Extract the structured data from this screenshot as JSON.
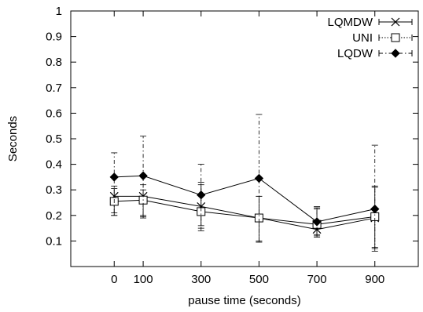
{
  "chart_data": {
    "type": "line",
    "title": "",
    "xlabel": "pause time (seconds)",
    "ylabel": "Seconds",
    "x": [
      0,
      100,
      300,
      500,
      700,
      900
    ],
    "xlim": [
      -150,
      1050
    ],
    "ylim": [
      0,
      1
    ],
    "x_ticks": [
      0,
      100,
      300,
      500,
      700,
      900
    ],
    "y_ticks": [
      0.1,
      0.2,
      0.3,
      0.4,
      0.5,
      0.6,
      0.7,
      0.8,
      0.9,
      1
    ],
    "x_tick_labels": [
      "0",
      "100",
      "300",
      "500",
      "700",
      "900"
    ],
    "y_tick_labels": [
      "0.1",
      "0.2",
      "0.3",
      "0.4",
      "0.5",
      "0.6",
      "0.7",
      "0.8",
      "0.9",
      "1"
    ],
    "grid": false,
    "legend_position": "top-right",
    "series": [
      {
        "name": "LQMDW",
        "marker": "cross",
        "line": "solid",
        "values": [
          0.275,
          0.275,
          0.235,
          0.19,
          0.145,
          0.19
        ],
        "err_low": [
          0.2,
          0.2,
          0.16,
          0.1,
          0.115,
          0.07
        ],
        "err_high": [
          0.305,
          0.3,
          0.32,
          0.275,
          0.225,
          0.31
        ]
      },
      {
        "name": "UNI",
        "marker": "square",
        "line": "dotted",
        "values": [
          0.255,
          0.26,
          0.215,
          0.19,
          0.165,
          0.195
        ],
        "err_low": [
          0.2,
          0.19,
          0.15,
          0.1,
          0.12,
          0.075
        ],
        "err_high": [
          0.315,
          0.32,
          0.33,
          0.275,
          0.23,
          0.315
        ]
      },
      {
        "name": "LQDW",
        "marker": "diamond",
        "line": "dashdot",
        "values": [
          0.35,
          0.355,
          0.28,
          0.345,
          0.175,
          0.225
        ],
        "err_low": [
          0.21,
          0.195,
          0.14,
          0.095,
          0.125,
          0.06
        ],
        "err_high": [
          0.445,
          0.51,
          0.4,
          0.595,
          0.235,
          0.475
        ]
      }
    ]
  }
}
